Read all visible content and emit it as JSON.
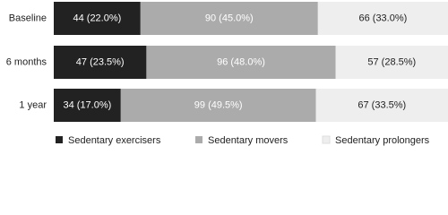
{
  "chart_data": {
    "type": "stacked-bar-horizontal",
    "categories": [
      "Baseline",
      "6 months",
      "1 year"
    ],
    "series": [
      {
        "name": "Sedentary exercisers",
        "color": "#222222",
        "values": [
          44,
          47,
          34
        ],
        "value_labels": [
          "44 (22.0%)",
          "47 (23.5%)",
          "34 (17.0%)"
        ]
      },
      {
        "name": "Sedentary movers",
        "color": "#ababab",
        "values": [
          90,
          96,
          99
        ],
        "value_labels": [
          "90 (45.0%)",
          "96 (48.0%)",
          "99 (49.5%)"
        ]
      },
      {
        "name": "Sedentary prolongers",
        "color": "#eeeeee",
        "values": [
          66,
          57,
          67
        ],
        "value_labels": [
          "66 (33.0%)",
          "57 (28.5%)",
          "67 (33.5%)"
        ]
      }
    ],
    "legend": "bottom"
  }
}
